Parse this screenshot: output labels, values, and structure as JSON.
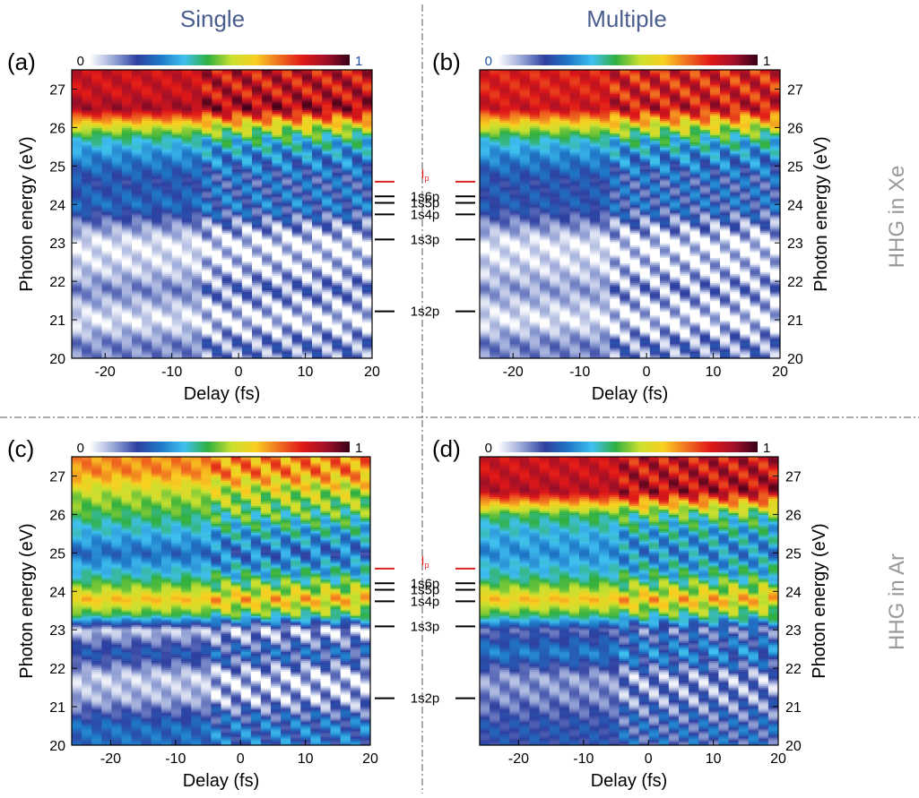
{
  "figure": {
    "column_titles": [
      "Single",
      "Multiple"
    ],
    "row_titles": [
      "HHG in Xe",
      "HHG in Ar"
    ]
  },
  "levels": [
    {
      "label": "I",
      "sub": "p",
      "energy": 24.59,
      "color": "#e02020"
    },
    {
      "label": "1s6p",
      "energy": 24.21,
      "color": "#000000"
    },
    {
      "label": "1s5p",
      "energy": 24.04,
      "color": "#000000"
    },
    {
      "label": "1s4p",
      "energy": 23.74,
      "color": "#000000"
    },
    {
      "label": "1s3p",
      "energy": 23.09,
      "color": "#000000"
    },
    {
      "label": "1s2p",
      "energy": 21.22,
      "color": "#000000"
    }
  ],
  "colormap": {
    "min_label": "0",
    "max_label": "1",
    "stops": [
      "#ffffff",
      "#9aa8d8",
      "#2e3fa0",
      "#1f78c8",
      "#3fc0f0",
      "#30b040",
      "#c8e030",
      "#f8d020",
      "#f07020",
      "#e01818",
      "#a01028",
      "#380018"
    ]
  },
  "chart_data": [
    {
      "type": "heatmap",
      "panel": "(a)",
      "xlabel": "Delay (fs)",
      "ylabel": "Photon energy (eV)",
      "xlim": [
        -25,
        20
      ],
      "ylim": [
        20,
        27.5
      ],
      "xticks": [
        -20,
        -10,
        0,
        10,
        20
      ],
      "yticks": [
        20,
        21,
        22,
        23,
        24,
        25,
        26,
        27
      ],
      "yaxis_side": "left",
      "value_range": [
        0,
        1
      ],
      "bands": [
        {
          "energy": 26.9,
          "intensity": 0.85
        },
        {
          "energy": 26.5,
          "intensity": 0.9
        },
        {
          "energy": 26.0,
          "intensity": 0.55
        },
        {
          "energy": 25.7,
          "intensity": 0.4
        },
        {
          "energy": 25.3,
          "intensity": 0.3
        },
        {
          "energy": 24.6,
          "intensity": 0.2
        },
        {
          "energy": 24.0,
          "intensity": 0.25
        },
        {
          "energy": 23.5,
          "intensity": 0.12
        },
        {
          "energy": 23.0,
          "intensity": 0.02
        },
        {
          "energy": 22.3,
          "intensity": 0.05
        },
        {
          "energy": 21.8,
          "intensity": 0.12
        },
        {
          "energy": 21.0,
          "intensity": 0.02
        },
        {
          "energy": 20.4,
          "intensity": 0.12
        }
      ]
    },
    {
      "type": "heatmap",
      "panel": "(b)",
      "xlabel": "Delay (fs)",
      "ylabel": "Photon energy (eV)",
      "xlim": [
        -25,
        20
      ],
      "ylim": [
        20,
        27.5
      ],
      "xticks": [
        -20,
        -10,
        0,
        10,
        20
      ],
      "yticks": [
        20,
        21,
        22,
        23,
        24,
        25,
        26,
        27
      ],
      "yaxis_side": "right",
      "value_range": [
        0,
        1
      ],
      "bands": [
        {
          "energy": 26.9,
          "intensity": 0.82
        },
        {
          "energy": 26.5,
          "intensity": 0.85
        },
        {
          "energy": 26.0,
          "intensity": 0.55
        },
        {
          "energy": 25.7,
          "intensity": 0.4
        },
        {
          "energy": 25.3,
          "intensity": 0.3
        },
        {
          "energy": 24.6,
          "intensity": 0.2
        },
        {
          "energy": 24.0,
          "intensity": 0.22
        },
        {
          "energy": 23.5,
          "intensity": 0.12
        },
        {
          "energy": 23.0,
          "intensity": 0.02
        },
        {
          "energy": 22.3,
          "intensity": 0.05
        },
        {
          "energy": 21.8,
          "intensity": 0.1
        },
        {
          "energy": 21.0,
          "intensity": 0.02
        },
        {
          "energy": 20.4,
          "intensity": 0.12
        }
      ]
    },
    {
      "type": "heatmap",
      "panel": "(c)",
      "xlabel": "Delay (fs)",
      "ylabel": "Photon energy (eV)",
      "xlim": [
        -26,
        20
      ],
      "ylim": [
        20,
        27.5
      ],
      "xticks": [
        -20,
        -10,
        0,
        10,
        20
      ],
      "yticks": [
        20,
        21,
        22,
        23,
        24,
        25,
        26,
        27
      ],
      "yaxis_side": "left",
      "value_range": [
        0,
        1
      ],
      "bands": [
        {
          "energy": 27.1,
          "intensity": 0.7
        },
        {
          "energy": 26.6,
          "intensity": 0.55
        },
        {
          "energy": 26.0,
          "intensity": 0.45
        },
        {
          "energy": 25.5,
          "intensity": 0.35
        },
        {
          "energy": 25.0,
          "intensity": 0.25
        },
        {
          "energy": 24.4,
          "intensity": 0.4
        },
        {
          "energy": 24.0,
          "intensity": 0.55
        },
        {
          "energy": 23.8,
          "intensity": 0.65
        },
        {
          "energy": 23.4,
          "intensity": 0.45
        },
        {
          "energy": 23.0,
          "intensity": 0.05
        },
        {
          "energy": 22.4,
          "intensity": 0.22
        },
        {
          "energy": 21.8,
          "intensity": 0.05
        },
        {
          "energy": 21.2,
          "intensity": 0.08
        },
        {
          "energy": 20.5,
          "intensity": 0.25
        }
      ]
    },
    {
      "type": "heatmap",
      "panel": "(d)",
      "xlabel": "Delay (fs)",
      "ylabel": "Photon energy (eV)",
      "xlim": [
        -26,
        20
      ],
      "ylim": [
        20,
        27.5
      ],
      "xticks": [
        -20,
        -10,
        0,
        10,
        20
      ],
      "yticks": [
        20,
        21,
        22,
        23,
        24,
        25,
        26,
        27
      ],
      "yaxis_side": "right",
      "value_range": [
        0,
        1
      ],
      "bands": [
        {
          "energy": 27.1,
          "intensity": 0.85
        },
        {
          "energy": 26.6,
          "intensity": 0.88
        },
        {
          "energy": 26.0,
          "intensity": 0.45
        },
        {
          "energy": 25.5,
          "intensity": 0.35
        },
        {
          "energy": 25.0,
          "intensity": 0.3
        },
        {
          "energy": 24.4,
          "intensity": 0.4
        },
        {
          "energy": 24.0,
          "intensity": 0.55
        },
        {
          "energy": 23.8,
          "intensity": 0.65
        },
        {
          "energy": 23.4,
          "intensity": 0.45
        },
        {
          "energy": 23.0,
          "intensity": 0.15
        },
        {
          "energy": 22.4,
          "intensity": 0.28
        },
        {
          "energy": 21.8,
          "intensity": 0.1
        },
        {
          "energy": 21.2,
          "intensity": 0.12
        },
        {
          "energy": 20.5,
          "intensity": 0.2
        }
      ]
    }
  ]
}
